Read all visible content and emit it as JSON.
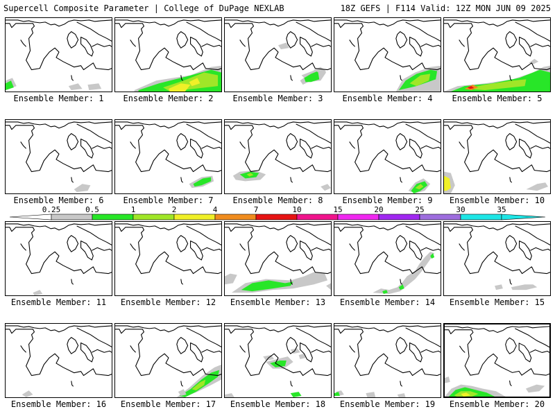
{
  "header": {
    "left_title": "Supercell Composite Parameter | College of DuPage NEXLAB",
    "right_title": "18Z GEFS | F114 Valid: 12Z MON JUN 09 2025"
  },
  "legend": {
    "tick_labels": [
      "0.25",
      "0.5",
      "1",
      "2",
      "4",
      "7",
      "10",
      "15",
      "20",
      "25",
      "30",
      "35"
    ],
    "bin_colors": [
      "#c8c8c8",
      "#28e628",
      "#a0e628",
      "#f0f028",
      "#f08c1e",
      "#e61414",
      "#f0148c",
      "#f028f0",
      "#a028f0",
      "#9e6ede",
      "#1ee6e6"
    ],
    "colors": {
      "gray": "#c8c8c8",
      "green": "#28e628",
      "lime": "#a0e628",
      "yellow": "#f0f028",
      "orange": "#f08c1e",
      "red": "#e61414"
    }
  },
  "members": [
    {
      "label": "Ensemble Member: 1"
    },
    {
      "label": "Ensemble Member: 2"
    },
    {
      "label": "Ensemble Member: 3"
    },
    {
      "label": "Ensemble Member: 4"
    },
    {
      "label": "Ensemble Member: 5"
    },
    {
      "label": "Ensemble Member: 6"
    },
    {
      "label": "Ensemble Member: 7"
    },
    {
      "label": "Ensemble Member: 8"
    },
    {
      "label": "Ensemble Member: 9"
    },
    {
      "label": "Ensemble Member: 10"
    },
    {
      "label": "Ensemble Member: 11"
    },
    {
      "label": "Ensemble Member: 12"
    },
    {
      "label": "Ensemble Member: 13"
    },
    {
      "label": "Ensemble Member: 14"
    },
    {
      "label": "Ensemble Member: 15"
    },
    {
      "label": "Ensemble Member: 16"
    },
    {
      "label": "Ensemble Member: 17"
    },
    {
      "label": "Ensemble Member: 18"
    },
    {
      "label": "Ensemble Member: 19"
    },
    {
      "label": "Ensemble Member: 20"
    }
  ]
}
